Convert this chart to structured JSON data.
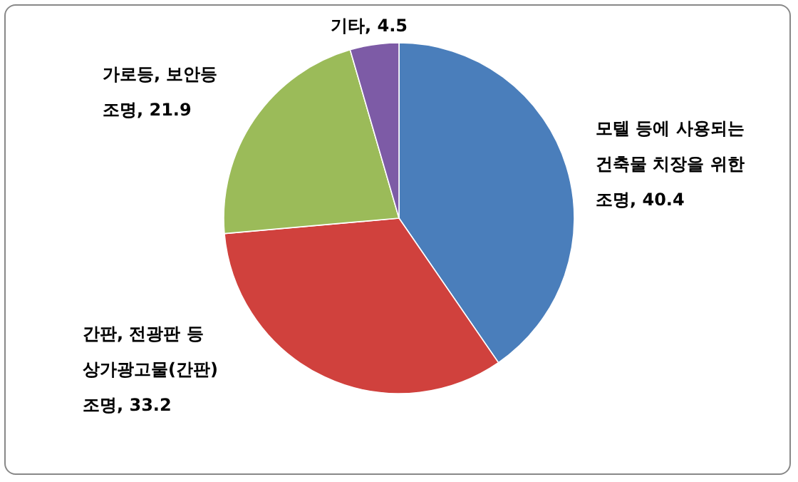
{
  "chart_data": {
    "type": "pie",
    "categories": [
      "모텔 등에 사용되는 건축물 치장을 위한 조명",
      "간판, 전광판 등 상가광고물(간판) 조명",
      "가로등, 보안등 조명",
      "기타"
    ],
    "values": [
      40.4,
      33.2,
      21.9,
      4.5
    ],
    "value_labels": [
      ", 40.4",
      ", 33.2",
      ", 21.9",
      ", 4.5"
    ],
    "colors": [
      "#4a7ebb",
      "#d0413d",
      "#9bbb59",
      "#7d5ba6"
    ]
  }
}
